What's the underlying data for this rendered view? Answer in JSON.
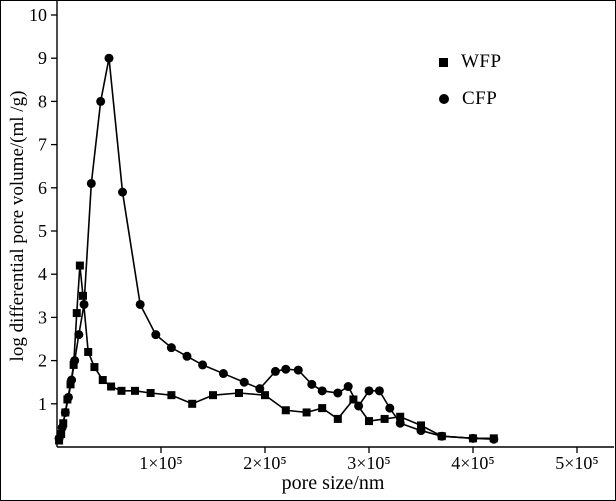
{
  "figure": {
    "background": "#ffffff",
    "frame_color": "#000000"
  },
  "chart_data": {
    "type": "line",
    "title": "",
    "xlabel": "pore size/nm",
    "ylabel": "log differential pore volume/(ml /g)",
    "xlim": [
      0,
      500000
    ],
    "ylim": [
      0,
      10
    ],
    "grid": false,
    "legend_position": "upper-right",
    "x_ticks": [
      {
        "value": 100000,
        "label": "1×10⁵"
      },
      {
        "value": 200000,
        "label": "2×10⁵"
      },
      {
        "value": 300000,
        "label": "3×10⁵"
      },
      {
        "value": 400000,
        "label": "4×10⁵"
      },
      {
        "value": 500000,
        "label": "5×10⁵"
      }
    ],
    "y_ticks": [
      1,
      2,
      3,
      4,
      5,
      6,
      7,
      8,
      9,
      10
    ],
    "series": [
      {
        "name": "WFP",
        "marker": "square",
        "color": "#000000",
        "x": [
          2000,
          4000,
          6000,
          8000,
          10000,
          13000,
          16000,
          19000,
          22000,
          25000,
          30000,
          36000,
          44000,
          52000,
          62000,
          75000,
          90000,
          110000,
          130000,
          150000,
          175000,
          200000,
          220000,
          240000,
          255000,
          270000,
          285000,
          300000,
          315000,
          330000,
          350000,
          370000,
          400000,
          420000
        ],
        "y": [
          0.15,
          0.3,
          0.55,
          0.8,
          1.1,
          1.45,
          1.9,
          3.1,
          4.2,
          3.5,
          2.2,
          1.85,
          1.55,
          1.4,
          1.3,
          1.3,
          1.25,
          1.2,
          1.0,
          1.2,
          1.25,
          1.2,
          0.85,
          0.8,
          0.9,
          0.65,
          1.1,
          0.6,
          0.65,
          0.7,
          0.5,
          0.25,
          0.2,
          0.2
        ]
      },
      {
        "name": "CFP",
        "marker": "circle",
        "color": "#000000",
        "x": [
          2000,
          5000,
          8000,
          11000,
          14000,
          17000,
          21000,
          26000,
          33000,
          42000,
          50000,
          63000,
          80000,
          95000,
          110000,
          125000,
          140000,
          160000,
          180000,
          195000,
          210000,
          220000,
          232000,
          245000,
          255000,
          270000,
          280000,
          290000,
          300000,
          310000,
          320000,
          330000,
          350000,
          370000,
          400000,
          420000
        ],
        "y": [
          0.2,
          0.45,
          0.8,
          1.15,
          1.55,
          2.0,
          2.6,
          3.3,
          6.1,
          8.0,
          9.0,
          5.9,
          3.3,
          2.6,
          2.3,
          2.1,
          1.9,
          1.7,
          1.5,
          1.35,
          1.75,
          1.8,
          1.78,
          1.45,
          1.3,
          1.25,
          1.4,
          0.95,
          1.3,
          1.3,
          0.9,
          0.55,
          0.38,
          0.25,
          0.2,
          0.18
        ]
      }
    ]
  }
}
